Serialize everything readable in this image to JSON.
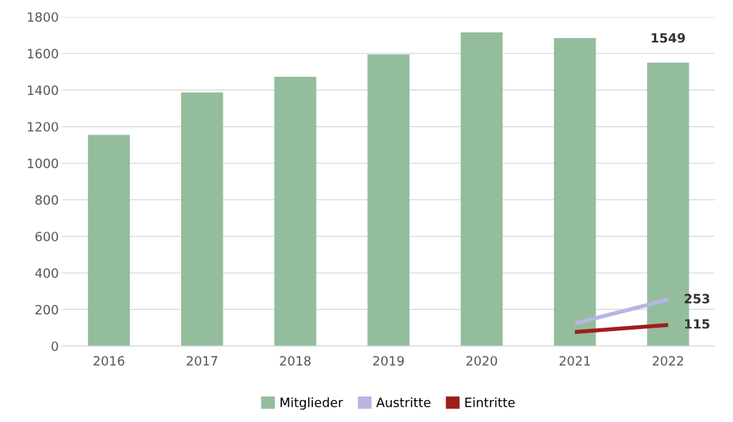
{
  "chart_data": {
    "type": "bar",
    "categories": [
      "2016",
      "2017",
      "2018",
      "2019",
      "2020",
      "2021",
      "2022"
    ],
    "series": [
      {
        "name": "Mitglieder",
        "color": "#93bd9c",
        "values": [
          1155,
          1387,
          1472,
          1595,
          1715,
          1684,
          1549
        ],
        "value_labels": [
          null,
          null,
          null,
          null,
          null,
          null,
          "1549"
        ]
      },
      {
        "name": "Austritte",
        "type": "line",
        "color": "#b8b5e2",
        "values": [
          null,
          null,
          null,
          null,
          null,
          124,
          253
        ],
        "value_labels": [
          null,
          null,
          null,
          null,
          null,
          null,
          "253"
        ]
      },
      {
        "name": "Eintritte",
        "type": "line",
        "color": "#a01c1c",
        "values": [
          null,
          null,
          null,
          null,
          null,
          77,
          115
        ],
        "value_labels": [
          null,
          null,
          null,
          null,
          null,
          null,
          "115"
        ]
      }
    ],
    "ylim": [
      0,
      1800
    ],
    "yticks": [
      0,
      200,
      400,
      600,
      800,
      1000,
      1200,
      1400,
      1600,
      1800
    ],
    "grid": "y",
    "legend": "bottom",
    "marker": "none",
    "line_style": "solid"
  }
}
